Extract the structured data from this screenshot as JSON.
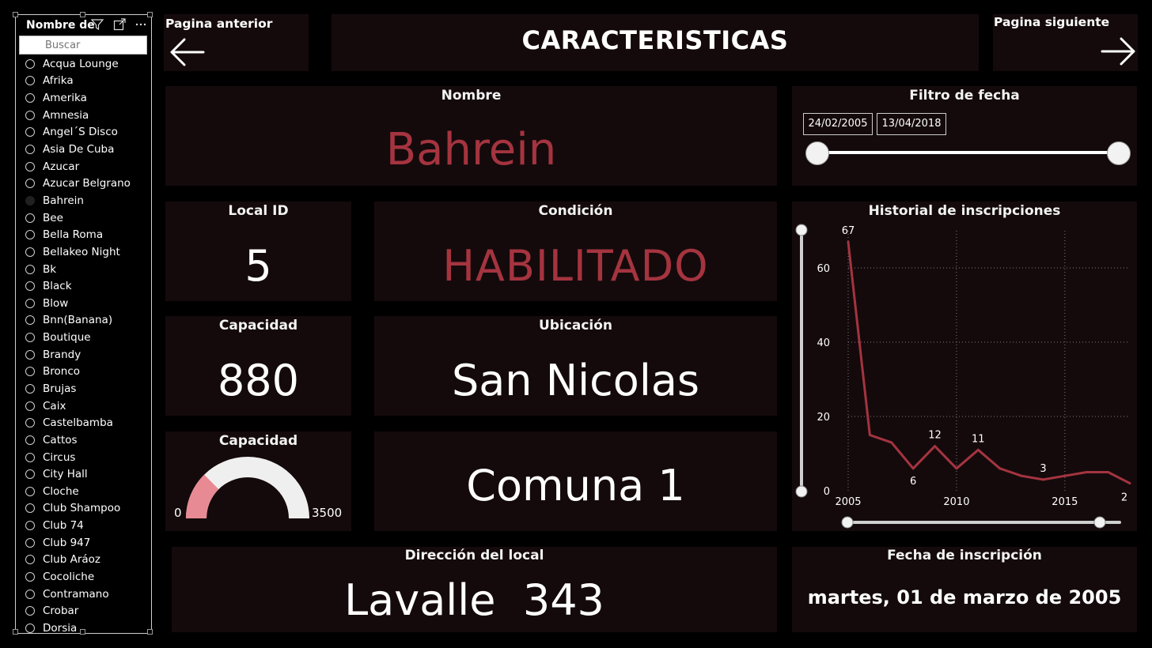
{
  "slicer": {
    "header": "Nombre de",
    "search_placeholder": "Buscar",
    "icons": [
      "filter-icon",
      "focus-mode-icon",
      "more-options-icon"
    ],
    "items": [
      {
        "label": "Acqua Lounge",
        "selected": false
      },
      {
        "label": "Afrika",
        "selected": false
      },
      {
        "label": "Amerika",
        "selected": false
      },
      {
        "label": "Amnesia",
        "selected": false
      },
      {
        "label": "Angel´S Disco",
        "selected": false
      },
      {
        "label": "Asia De Cuba",
        "selected": false
      },
      {
        "label": "Azucar",
        "selected": false
      },
      {
        "label": "Azucar Belgrano",
        "selected": false
      },
      {
        "label": "Bahrein",
        "selected": true
      },
      {
        "label": "Bee",
        "selected": false
      },
      {
        "label": "Bella Roma",
        "selected": false
      },
      {
        "label": "Bellakeo Night",
        "selected": false
      },
      {
        "label": "Bk",
        "selected": false
      },
      {
        "label": "Black",
        "selected": false
      },
      {
        "label": "Blow",
        "selected": false
      },
      {
        "label": "Bnn(Banana)",
        "selected": false
      },
      {
        "label": "Boutique",
        "selected": false
      },
      {
        "label": "Brandy",
        "selected": false
      },
      {
        "label": "Bronco",
        "selected": false
      },
      {
        "label": "Brujas",
        "selected": false
      },
      {
        "label": "Caix",
        "selected": false
      },
      {
        "label": "Castelbamba",
        "selected": false
      },
      {
        "label": "Cattos",
        "selected": false
      },
      {
        "label": "Circus",
        "selected": false
      },
      {
        "label": "City Hall",
        "selected": false
      },
      {
        "label": "Cloche",
        "selected": false
      },
      {
        "label": "Club Shampoo",
        "selected": false
      },
      {
        "label": "Club 74",
        "selected": false
      },
      {
        "label": "Club 947",
        "selected": false
      },
      {
        "label": "Club Aráoz",
        "selected": false
      },
      {
        "label": "Cocoliche",
        "selected": false
      },
      {
        "label": "Contramano",
        "selected": false
      },
      {
        "label": "Crobar",
        "selected": false
      },
      {
        "label": "Dorsia",
        "selected": false
      }
    ]
  },
  "nav": {
    "prev_label": "Pagina anterior",
    "next_label": "Pagina siguiente",
    "prev_icon": "arrow-left-icon",
    "next_icon": "arrow-right-icon"
  },
  "page_title": "CARACTERISTICAS",
  "nombre": {
    "title": "Nombre",
    "value": "Bahrein"
  },
  "filtro_fecha": {
    "title": "Filtro de fecha",
    "start": "24/02/2005",
    "end": "13/04/2018",
    "range_low": 0,
    "range_high": 1
  },
  "local_id": {
    "title": "Local ID",
    "value": "5"
  },
  "condicion": {
    "title": "Condición",
    "value": "HABILITADO"
  },
  "capacidad": {
    "title": "Capacidad",
    "value": "880"
  },
  "ubicacion": {
    "title": "Ubicación",
    "value": "San Nicolas"
  },
  "gauge": {
    "title": "Capacidad",
    "min_label": "0",
    "max_label": "3500",
    "min": 0,
    "max": 3500,
    "value": 880
  },
  "comuna": {
    "value": "Comuna 1"
  },
  "direccion": {
    "title": "Dirección del local",
    "value": "Lavalle  343"
  },
  "fecha_inscripcion": {
    "title": "Fecha de inscripción",
    "value": "martes, 01 de marzo de 2005"
  },
  "historial": {
    "title": "Historial de inscripciones"
  },
  "colors": {
    "accent": "#a4343f",
    "card": "#140a0c",
    "background": "#000000",
    "gauge_fill": "#e88a93",
    "gauge_track": "#efefef"
  },
  "chart_data": {
    "type": "line",
    "title": "Historial de inscripciones",
    "x": [
      2005,
      2006,
      2007,
      2008,
      2009,
      2010,
      2011,
      2012,
      2013,
      2014,
      2015,
      2016,
      2017,
      2018
    ],
    "series": [
      {
        "values": [
          67,
          15,
          13,
          6,
          12,
          6,
          11,
          6,
          4,
          3,
          4,
          5,
          5,
          2
        ]
      }
    ],
    "data_labels": [
      {
        "x": 2005,
        "text": "67"
      },
      {
        "x": 2008,
        "text": "6"
      },
      {
        "x": 2009,
        "text": "12"
      },
      {
        "x": 2011,
        "text": "11"
      },
      {
        "x": 2014,
        "text": "3"
      },
      {
        "x": 2018,
        "text": "2"
      }
    ],
    "x_ticks": [
      "2005",
      "2010",
      "2015"
    ],
    "y_ticks": [
      "0",
      "20",
      "40",
      "60"
    ],
    "xlim": [
      2005,
      2018
    ],
    "ylim": [
      0,
      70
    ],
    "grid": true
  }
}
